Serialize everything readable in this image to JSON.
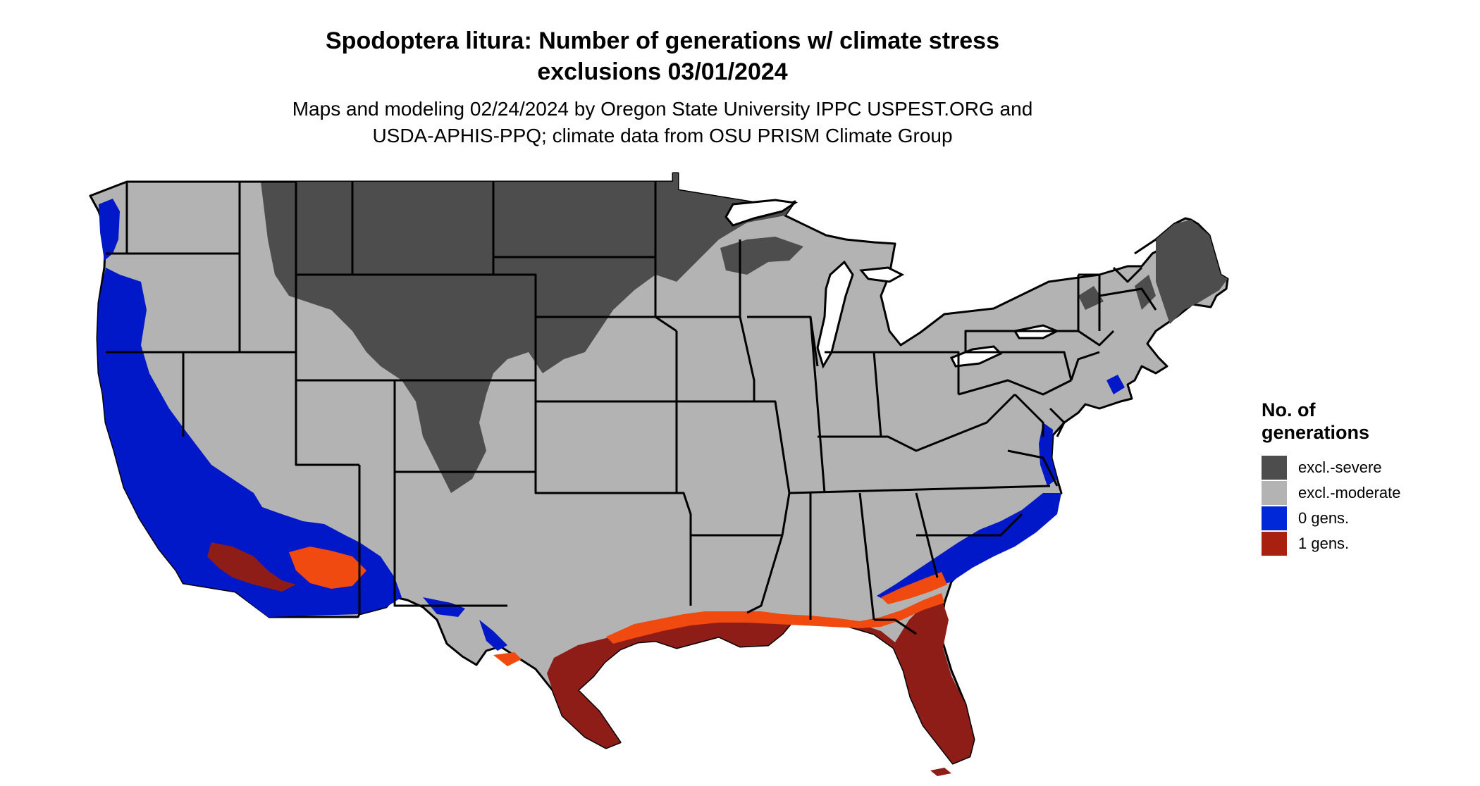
{
  "title": {
    "line1": "Spodoptera litura: Number of generations w/ climate stress",
    "line2": "exclusions 03/01/2024"
  },
  "subtitle": {
    "line1": "Maps and modeling 02/24/2024 by Oregon State University IPPC USPEST.ORG and",
    "line2": "USDA-APHIS-PPQ; climate data from OSU PRISM Climate Group"
  },
  "legend": {
    "title_line1": "No. of",
    "title_line2": "generations",
    "items": [
      {
        "label": "excl.-severe",
        "color": "#4d4d4d"
      },
      {
        "label": "excl.-moderate",
        "color": "#b3b3b3"
      },
      {
        "label": "0 gens.",
        "color": "#0028d8"
      },
      {
        "label": "1 gens.",
        "color": "#a82010"
      }
    ]
  },
  "colors": {
    "moderate": "#b3b3b3",
    "severe": "#4d4d4d",
    "zero_gens": "#0018c8",
    "one_gens": "#8e1d18",
    "one_gens_light": "#f04a10",
    "border": "#000000"
  }
}
